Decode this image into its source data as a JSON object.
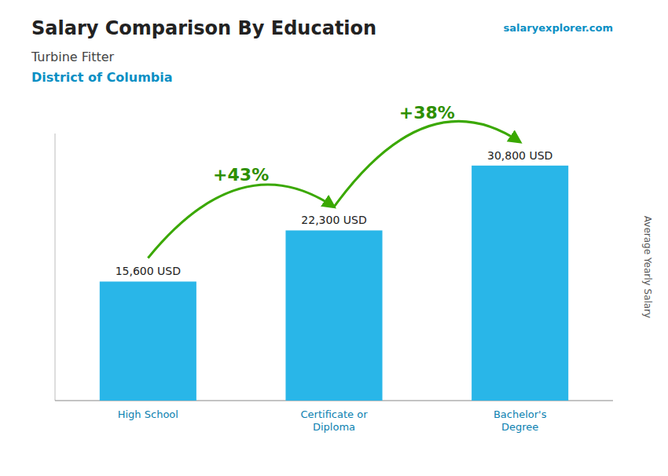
{
  "chart_data": {
    "type": "bar",
    "title": "Salary Comparison By Education",
    "subtitle": [
      "Turbine Fitter",
      "District of Columbia"
    ],
    "source": "salaryexplorer.com",
    "y_label": "Average Yearly Salary",
    "categories": [
      "High School",
      "Certificate or\nDiploma",
      "Bachelor's\nDegree"
    ],
    "values": [
      15600,
      22300,
      30800
    ],
    "value_labels": [
      "15,600 USD",
      "22,300 USD",
      "30,800 USD"
    ],
    "data_labels": true,
    "annotations": [
      "+43%",
      "+38%"
    ],
    "color": "#29b6e8",
    "ylim": [
      0,
      35000
    ],
    "tick_labels": "x",
    "grid": false
  }
}
